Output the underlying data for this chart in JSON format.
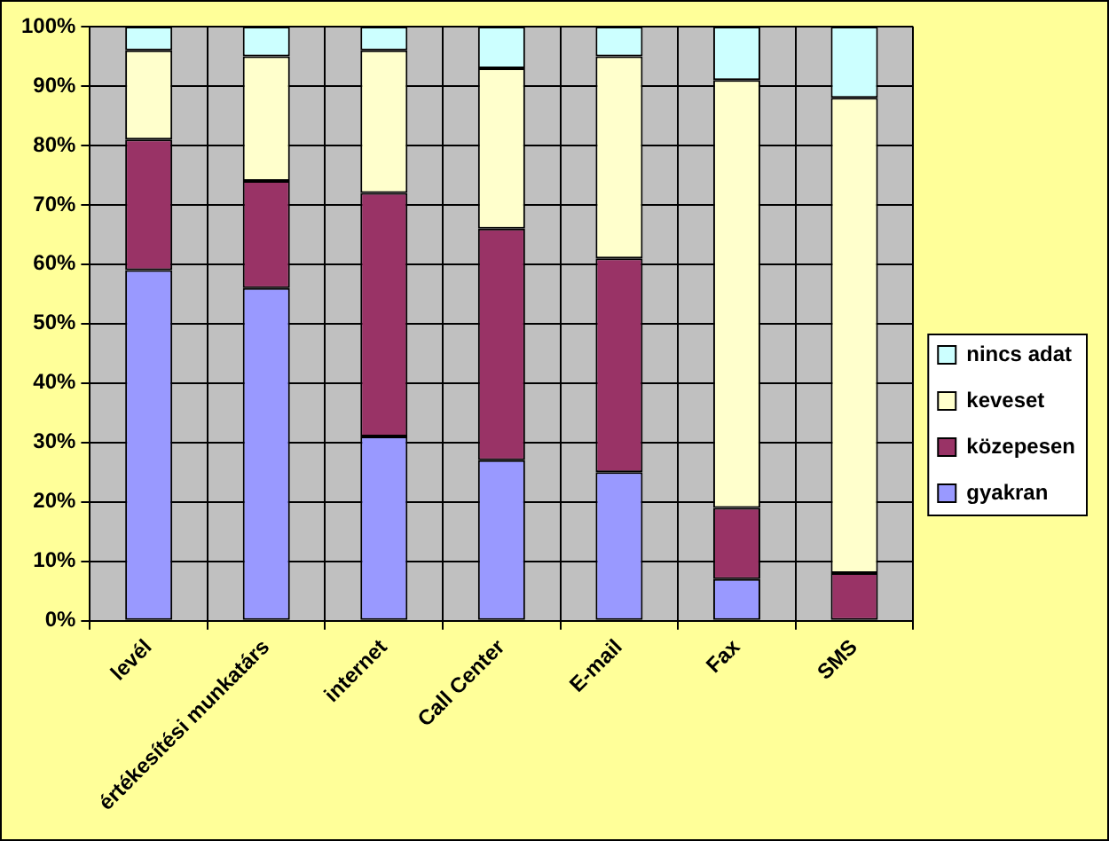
{
  "chart_data": {
    "type": "bar",
    "stacked": true,
    "categories": [
      "levél",
      "értékesítési munkatárs",
      "internet",
      "Call Center",
      "E-mail",
      "Fax",
      "SMS"
    ],
    "series": [
      {
        "name": "gyakran",
        "color": "#9999ff",
        "values": [
          59,
          56,
          31,
          27,
          25,
          7,
          0
        ]
      },
      {
        "name": "közepesen",
        "color": "#993366",
        "values": [
          22,
          18,
          41,
          39,
          36,
          12,
          8
        ]
      },
      {
        "name": "keveset",
        "color": "#ffffcc",
        "values": [
          15,
          21,
          24,
          27,
          34,
          72,
          80
        ]
      },
      {
        "name": "nincs adat",
        "color": "#ccffff",
        "values": [
          4,
          5,
          4,
          7,
          5,
          9,
          12
        ]
      }
    ],
    "ylim": [
      0,
      100
    ],
    "yticks": [
      {
        "value": 0,
        "label": "0%"
      },
      {
        "value": 10,
        "label": "10%"
      },
      {
        "value": 20,
        "label": "20%"
      },
      {
        "value": 30,
        "label": "30%"
      },
      {
        "value": 40,
        "label": "40%"
      },
      {
        "value": 50,
        "label": "50%"
      },
      {
        "value": 60,
        "label": "60%"
      },
      {
        "value": 70,
        "label": "70%"
      },
      {
        "value": 80,
        "label": "80%"
      },
      {
        "value": 90,
        "label": "90%"
      },
      {
        "value": 100,
        "label": "100%"
      }
    ],
    "grid": true,
    "legend": "right"
  }
}
